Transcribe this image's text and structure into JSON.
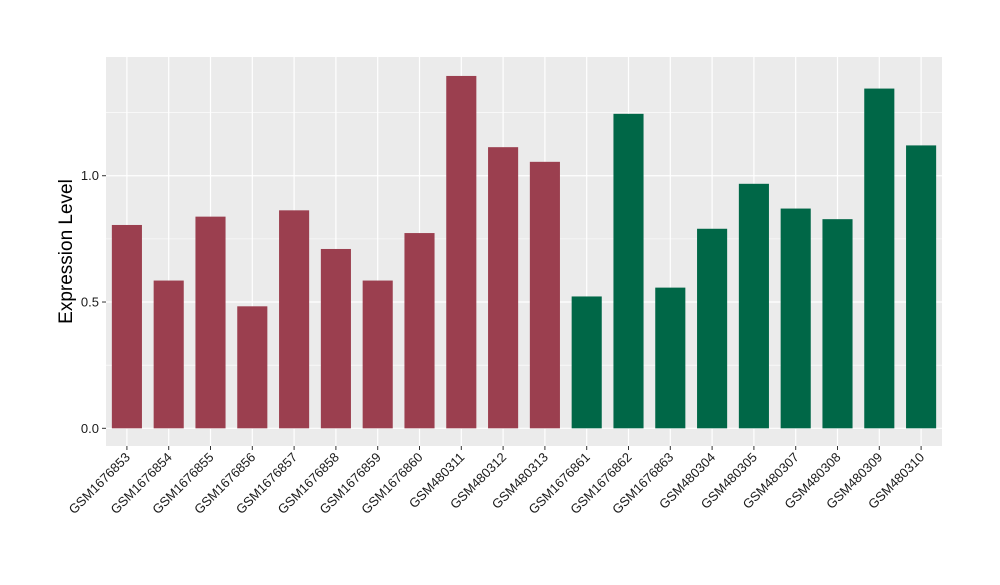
{
  "chart_data": {
    "type": "bar",
    "ylabel": "Expression Level",
    "xlabel": "",
    "ylim": [
      -0.07,
      1.47
    ],
    "yticks": [
      0.0,
      0.5,
      1.0
    ],
    "ytick_labels": [
      "0.0",
      "0.5",
      "1.0"
    ],
    "categories": [
      "GSM1676853",
      "GSM1676854",
      "GSM1676855",
      "GSM1676856",
      "GSM1676857",
      "GSM1676858",
      "GSM1676859",
      "GSM1676860",
      "GSM480311",
      "GSM480312",
      "GSM480313",
      "GSM1676861",
      "GSM1676862",
      "GSM1676863",
      "GSM480304",
      "GSM480305",
      "GSM480307",
      "GSM480308",
      "GSM480309",
      "GSM480310"
    ],
    "values": [
      0.805,
      0.585,
      0.838,
      0.483,
      0.863,
      0.71,
      0.585,
      0.773,
      1.395,
      1.113,
      1.055,
      0.522,
      1.245,
      0.557,
      0.79,
      0.968,
      0.87,
      0.828,
      1.345,
      1.12
    ],
    "bar_groups": [
      0,
      0,
      0,
      0,
      0,
      0,
      0,
      0,
      0,
      0,
      0,
      1,
      1,
      1,
      1,
      1,
      1,
      1,
      1,
      1
    ],
    "group_colors": [
      "#9B3F4F",
      "#006747"
    ],
    "panel_background": "#EBEBEB",
    "gridline_color": "#FFFFFF",
    "grid": true
  }
}
